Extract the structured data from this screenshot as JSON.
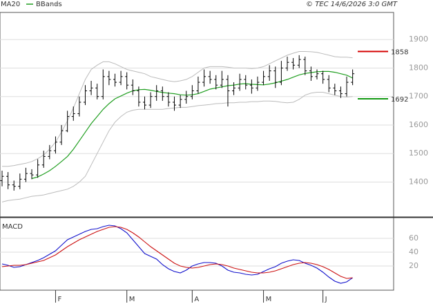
{
  "chart_data": [
    {
      "type": "ohlc",
      "annotation": "© TEC 14/6/2026 3:0 GMT",
      "xlim": [
        -0.35,
        65.9
      ],
      "ylim": [
        1280,
        1995
      ],
      "yticks": [
        1400,
        1500,
        1600,
        1700,
        1800,
        1900
      ],
      "grid": true,
      "color": "#000000",
      "open": [
        1405,
        1420,
        1390,
        1385,
        1410,
        1430,
        1425,
        1460,
        1490,
        1510,
        1540,
        1580,
        1630,
        1640,
        1680,
        1720,
        1730,
        1700,
        1770,
        1760,
        1750,
        1770,
        1740,
        1720,
        1680,
        1670,
        1700,
        1720,
        1700,
        1680,
        1670,
        1690,
        1700,
        1720,
        1750,
        1770,
        1760,
        1740,
        1760,
        1720,
        1730,
        1760,
        1740,
        1730,
        1750,
        1770,
        1790,
        1750,
        1800,
        1820,
        1810,
        1830,
        1790,
        1770,
        1780,
        1760,
        1730,
        1720,
        1710,
        1750
      ],
      "high": [
        1440,
        1435,
        1405,
        1430,
        1450,
        1445,
        1480,
        1510,
        1530,
        1560,
        1600,
        1650,
        1665,
        1700,
        1740,
        1755,
        1745,
        1795,
        1790,
        1780,
        1790,
        1785,
        1760,
        1735,
        1700,
        1715,
        1740,
        1735,
        1715,
        1700,
        1705,
        1720,
        1740,
        1770,
        1795,
        1790,
        1775,
        1790,
        1775,
        1750,
        1780,
        1775,
        1760,
        1770,
        1790,
        1810,
        1805,
        1825,
        1840,
        1835,
        1845,
        1840,
        1805,
        1795,
        1790,
        1775,
        1745,
        1735,
        1770,
        1795
      ],
      "low": [
        1385,
        1375,
        1370,
        1375,
        1400,
        1410,
        1415,
        1450,
        1480,
        1500,
        1530,
        1575,
        1615,
        1630,
        1670,
        1705,
        1690,
        1690,
        1740,
        1735,
        1740,
        1725,
        1705,
        1665,
        1655,
        1660,
        1685,
        1685,
        1665,
        1650,
        1660,
        1675,
        1690,
        1710,
        1735,
        1745,
        1725,
        1730,
        1665,
        1705,
        1720,
        1725,
        1710,
        1720,
        1740,
        1755,
        1730,
        1740,
        1790,
        1795,
        1800,
        1775,
        1755,
        1760,
        1745,
        1715,
        1705,
        1695,
        1700,
        1740
      ],
      "close": [
        1420,
        1390,
        1385,
        1410,
        1430,
        1425,
        1460,
        1490,
        1510,
        1540,
        1580,
        1630,
        1640,
        1680,
        1720,
        1730,
        1700,
        1770,
        1760,
        1750,
        1770,
        1740,
        1720,
        1680,
        1670,
        1700,
        1720,
        1700,
        1680,
        1670,
        1690,
        1700,
        1720,
        1750,
        1770,
        1760,
        1740,
        1760,
        1720,
        1730,
        1760,
        1740,
        1730,
        1750,
        1770,
        1790,
        1750,
        1800,
        1820,
        1810,
        1830,
        1790,
        1770,
        1780,
        1760,
        1730,
        1720,
        1710,
        1750,
        1780
      ],
      "series": [
        {
          "name": "MA20",
          "color": "#1f9e1f",
          "values": [
            null,
            null,
            null,
            null,
            null,
            1412,
            1418,
            1428,
            1440,
            1455,
            1472,
            1490,
            1515,
            1545,
            1575,
            1605,
            1630,
            1655,
            1675,
            1692,
            1702,
            1712,
            1720,
            1724,
            1725,
            1722,
            1718,
            1714,
            1712,
            1710,
            1706,
            1705,
            1706,
            1710,
            1718,
            1726,
            1730,
            1734,
            1738,
            1740,
            1744,
            1745,
            1743,
            1742,
            1741,
            1744,
            1748,
            1754,
            1760,
            1768,
            1776,
            1781,
            1784,
            1787,
            1788,
            1788,
            1785,
            1780,
            1775,
            1765
          ]
        },
        {
          "name": "BBands",
          "color": "#bbbbbb",
          "upper": [
            1455,
            1455,
            1458,
            1462,
            1466,
            1472,
            1482,
            1495,
            1515,
            1540,
            1575,
            1615,
            1660,
            1710,
            1760,
            1795,
            1810,
            1822,
            1822,
            1815,
            1805,
            1795,
            1790,
            1785,
            1780,
            1770,
            1765,
            1760,
            1755,
            1752,
            1755,
            1760,
            1770,
            1785,
            1800,
            1805,
            1805,
            1805,
            1803,
            1800,
            1800,
            1800,
            1798,
            1800,
            1805,
            1815,
            1825,
            1835,
            1845,
            1852,
            1858,
            1858,
            1857,
            1855,
            1850,
            1845,
            1840,
            1838,
            1838,
            1836
          ],
          "lower": [
            1330,
            1335,
            1338,
            1340,
            1345,
            1350,
            1352,
            1355,
            1360,
            1365,
            1370,
            1375,
            1385,
            1400,
            1420,
            1460,
            1500,
            1540,
            1580,
            1610,
            1630,
            1645,
            1652,
            1655,
            1655,
            1655,
            1655,
            1655,
            1658,
            1660,
            1662,
            1662,
            1665,
            1668,
            1670,
            1672,
            1675,
            1676,
            1678,
            1678,
            1680,
            1680,
            1682,
            1682,
            1684,
            1684,
            1683,
            1680,
            1678,
            1680,
            1690,
            1705,
            1712,
            1715,
            1715,
            1710,
            1705,
            1700,
            1698,
            1700
          ]
        }
      ],
      "levels": [
        {
          "value": 1858,
          "color": "#d40000"
        },
        {
          "value": 1692,
          "color": "#119911"
        }
      ]
    },
    {
      "type": "line",
      "title": "MACD",
      "xlim": [
        -0.35,
        65.9
      ],
      "ylim": [
        -15,
        89
      ],
      "yticks": [
        20,
        40,
        60
      ],
      "xticks": [
        {
          "value": 9,
          "label": "F"
        },
        {
          "value": 21,
          "label": "M"
        },
        {
          "value": 32,
          "label": "A"
        },
        {
          "value": 44,
          "label": "M"
        },
        {
          "value": 54,
          "label": "J"
        }
      ],
      "series": [
        {
          "color": "#1010cc",
          "values": [
            23,
            21,
            18,
            19,
            22,
            25,
            28,
            32,
            37,
            42,
            50,
            58,
            62,
            66,
            70,
            73,
            74,
            77,
            79,
            78,
            74,
            68,
            58,
            48,
            38,
            34,
            30,
            22,
            16,
            12,
            10,
            14,
            20,
            23,
            25,
            25,
            24,
            20,
            14,
            11,
            10,
            8,
            7,
            8,
            12,
            16,
            19,
            24,
            27,
            29,
            28,
            24,
            21,
            17,
            11,
            4,
            -2,
            -5,
            -3,
            3
          ]
        },
        {
          "color": "#cc1010",
          "values": [
            19,
            20,
            21,
            21,
            22,
            24,
            26,
            28,
            32,
            36,
            42,
            48,
            53,
            58,
            62,
            66,
            70,
            73,
            76,
            77,
            76,
            73,
            68,
            62,
            55,
            48,
            42,
            36,
            30,
            24,
            20,
            18,
            17,
            18,
            20,
            22,
            23,
            22,
            20,
            17,
            15,
            13,
            11,
            10,
            10,
            11,
            13,
            16,
            19,
            22,
            24,
            25,
            24,
            22,
            19,
            15,
            10,
            5,
            2,
            3
          ]
        }
      ]
    }
  ]
}
